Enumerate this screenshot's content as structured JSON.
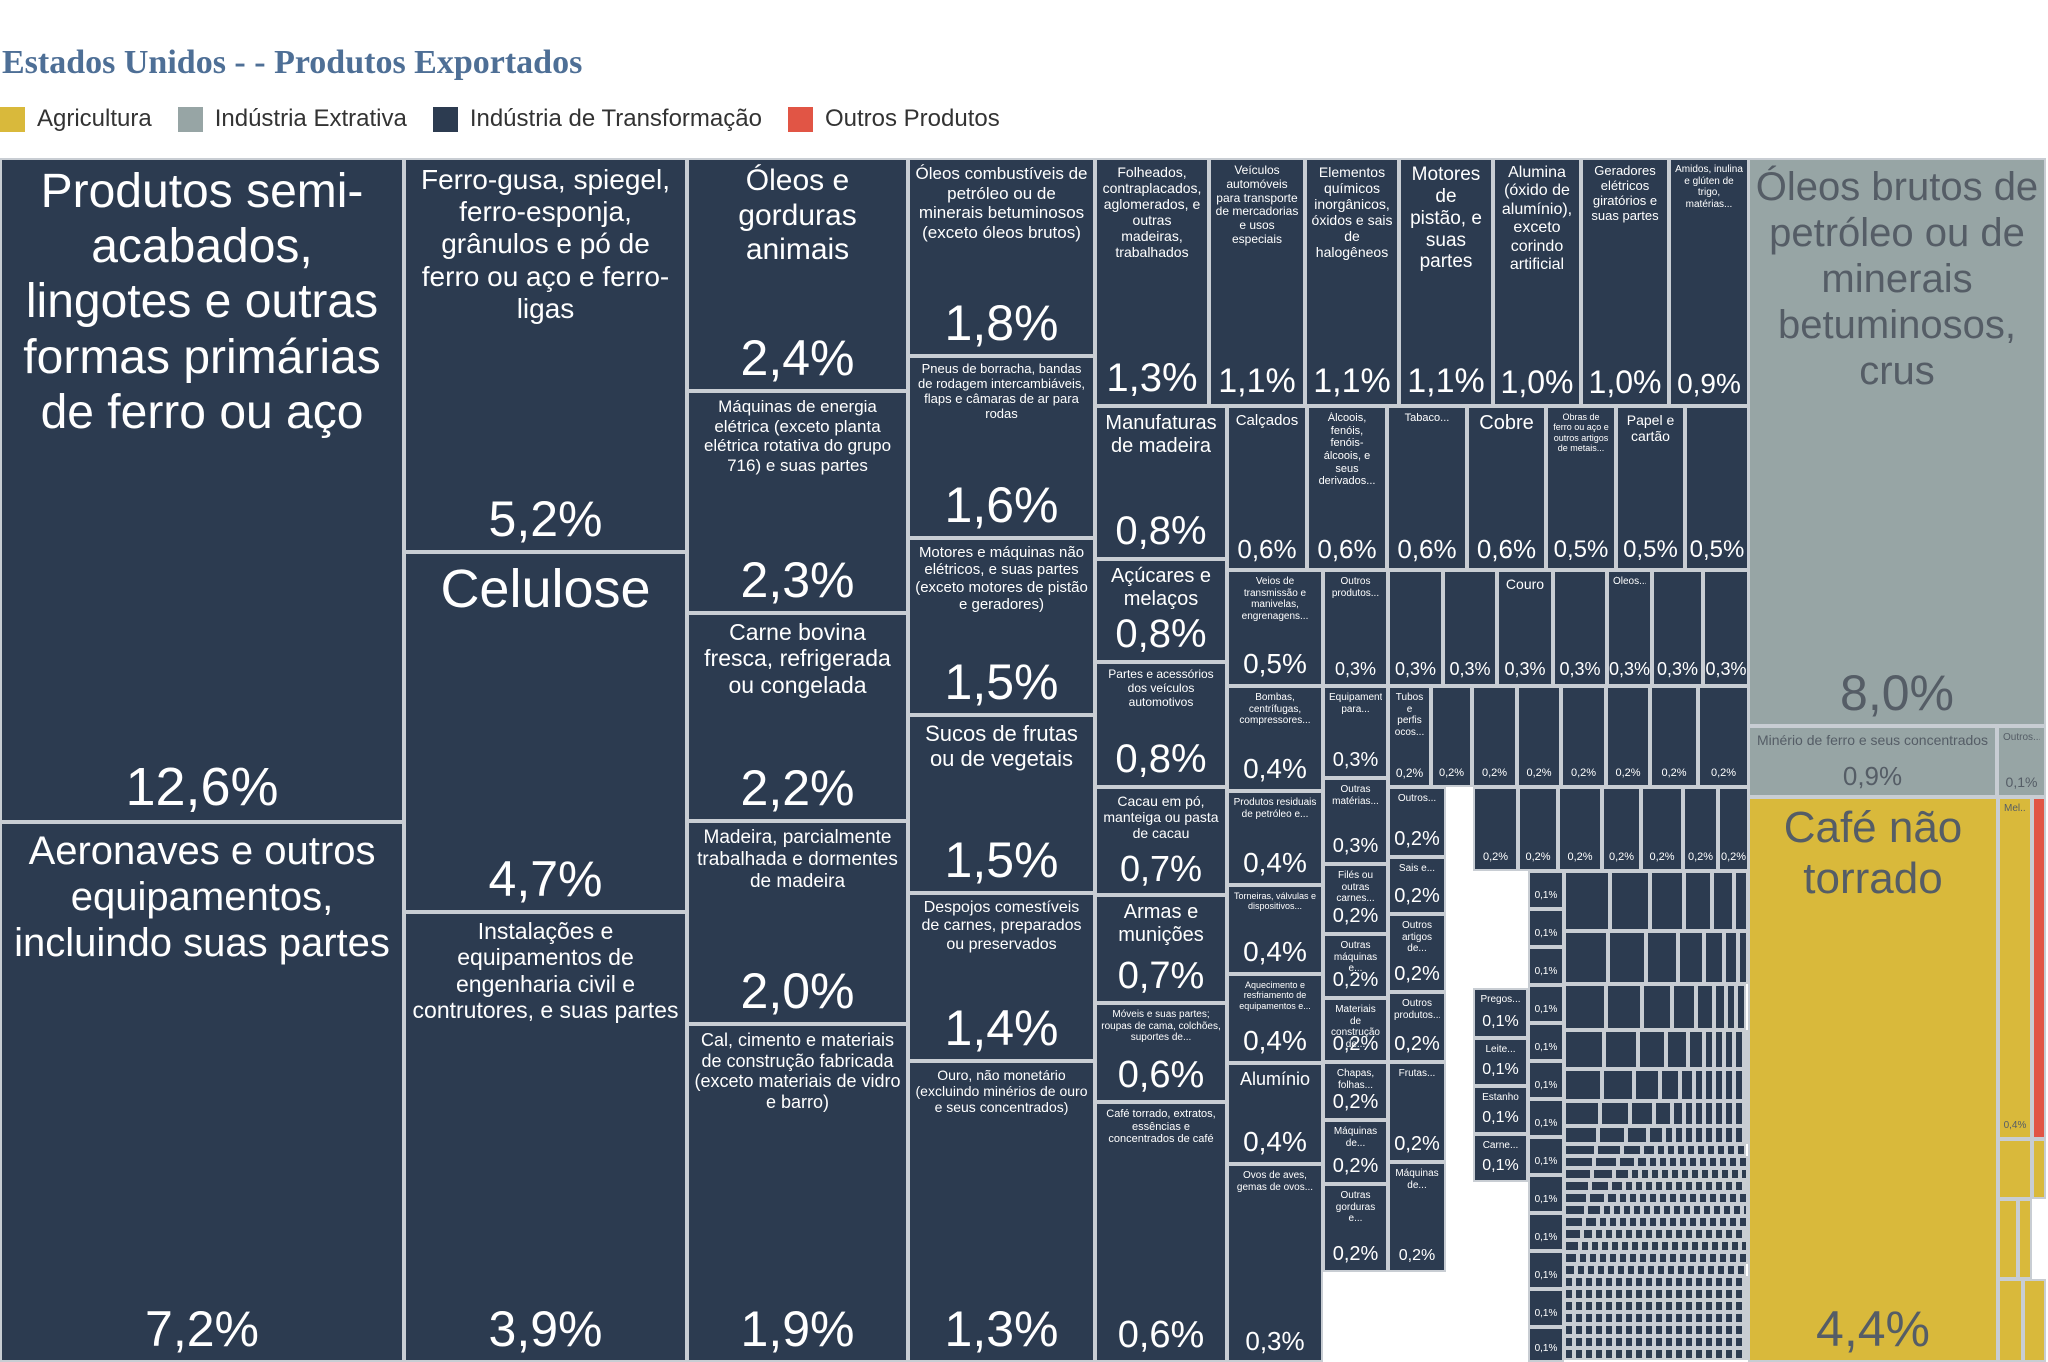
{
  "title": "Estados Unidos - - Produtos Exportados",
  "legend": [
    {
      "label": "Agricultura",
      "color": "#d9b93b",
      "icon": "legend-swatch-agricultura"
    },
    {
      "label": "Indústria Extrativa",
      "color": "#97a5a5",
      "icon": "legend-swatch-industria-extrativa"
    },
    {
      "label": "Indústria de Transformação",
      "color": "#2c3b50",
      "icon": "legend-swatch-industria-transformacao"
    },
    {
      "label": "Outros Produtos",
      "color": "#e15545",
      "icon": "legend-swatch-outros-produtos"
    }
  ],
  "chart_data": {
    "type": "treemap",
    "title": "Estados Unidos - - Produtos Exportados",
    "unit": "%",
    "items": [
      {
        "name": "Produtos semi-acabados, lingotes e outras formas primárias de ferro ou aço",
        "value": 12.6,
        "label": "12,6%",
        "category": "Indústria de Transformação"
      },
      {
        "name": "Aeronaves e outros equipamentos, incluindo suas partes",
        "value": 7.2,
        "label": "7,2%",
        "category": "Indústria de Transformação"
      },
      {
        "name": "Ferro-gusa, spiegel, ferro-esponja, grânulos e pó de ferro ou aço e ferro-ligas",
        "value": 5.2,
        "label": "5,2%",
        "category": "Indústria de Transformação"
      },
      {
        "name": "Celulose",
        "value": 4.7,
        "label": "4,7%",
        "category": "Indústria de Transformação"
      },
      {
        "name": "Instalações e equipamentos de engenharia civil e contrutores, e suas partes",
        "value": 3.9,
        "label": "3,9%",
        "category": "Indústria de Transformação"
      },
      {
        "name": "Óleos e gorduras animais",
        "value": 2.4,
        "label": "2,4%",
        "category": "Indústria de Transformação"
      },
      {
        "name": "Máquinas de energia elétrica (exceto planta elétrica rotativa do grupo 716) e suas partes",
        "value": 2.3,
        "label": "2,3%",
        "category": "Indústria de Transformação"
      },
      {
        "name": "Carne bovina fresca, refrigerada ou congelada",
        "value": 2.2,
        "label": "2,2%",
        "category": "Indústria de Transformação"
      },
      {
        "name": "Madeira, parcialmente trabalhada e dormentes de madeira",
        "value": 2.0,
        "label": "2,0%",
        "category": "Indústria de Transformação"
      },
      {
        "name": "Cal, cimento e materiais de construção fabricada (exceto materiais de vidro e barro)",
        "value": 1.9,
        "label": "1,9%",
        "category": "Indústria de Transformação"
      },
      {
        "name": "Óleos combustíveis de petróleo ou de minerais betuminosos (exceto óleos brutos)",
        "value": 1.8,
        "label": "1,8%",
        "category": "Indústria de Transformação"
      },
      {
        "name": "Pneus de borracha, bandas de rodagem intercambiáveis, flaps e câmaras de ar para rodas",
        "value": 1.6,
        "label": "1,6%",
        "category": "Indústria de Transformação"
      },
      {
        "name": "Motores e máquinas não elétricos, e suas partes (exceto motores de pistão e geradores)",
        "value": 1.5,
        "label": "1,5%",
        "category": "Indústria de Transformação"
      },
      {
        "name": "Sucos de frutas ou de vegetais",
        "value": 1.5,
        "label": "1,5%",
        "category": "Indústria de Transformação"
      },
      {
        "name": "Despojos comestíveis de carnes, preparados ou preservados",
        "value": 1.4,
        "label": "1,4%",
        "category": "Indústria de Transformação"
      },
      {
        "name": "Ouro, não monetário (excluindo minérios de ouro e seus concentrados)",
        "value": 1.3,
        "label": "1,3%",
        "category": "Indústria de Transformação"
      },
      {
        "name": "Folheados, contraplacados, aglomerados, e outras madeiras, trabalhados",
        "value": 1.3,
        "label": "1,3%",
        "category": "Indústria de Transformação"
      },
      {
        "name": "Veículos automóveis para transporte de mercadorias e usos especiais",
        "value": 1.1,
        "label": "1,1%",
        "category": "Indústria de Transformação"
      },
      {
        "name": "Elementos químicos inorgânicos, óxidos e sais de halogêneos",
        "value": 1.1,
        "label": "1,1%",
        "category": "Indústria de Transformação"
      },
      {
        "name": "Motores de pistão, e suas partes",
        "value": 1.1,
        "label": "1,1%",
        "category": "Indústria de Transformação"
      },
      {
        "name": "Alumina (óxido de alumínio), exceto corindo artificial",
        "value": 1.0,
        "label": "1,0%",
        "category": "Indústria de Transformação"
      },
      {
        "name": "Geradores elétricos giratórios e suas partes",
        "value": 1.0,
        "label": "1,0%",
        "category": "Indústria de Transformação"
      },
      {
        "name": "Amidos, inulina e glúten de trigo, matérias...",
        "value": 0.9,
        "label": "0,9%",
        "category": "Indústria de Transformação"
      },
      {
        "name": "Manufaturas de madeira",
        "value": 0.8,
        "label": "0,8%",
        "category": "Indústria de Transformação"
      },
      {
        "name": "Açúcares e melaços",
        "value": 0.8,
        "label": "0,8%",
        "category": "Indústria de Transformação"
      },
      {
        "name": "Partes e acessórios dos veículos automotivos",
        "value": 0.8,
        "label": "0,8%",
        "category": "Indústria de Transformação"
      },
      {
        "name": "Cacau em pó, manteiga ou pasta de cacau",
        "value": 0.7,
        "label": "0,7%",
        "category": "Indústria de Transformação"
      },
      {
        "name": "Armas e munições",
        "value": 0.7,
        "label": "0,7%",
        "category": "Indústria de Transformação"
      },
      {
        "name": "Móveis e suas partes; roupas de cama, colchões, suportes de...",
        "value": 0.6,
        "label": "0,6%",
        "category": "Indústria de Transformação"
      },
      {
        "name": "Café torrado, extratos, essências e concentrados de café",
        "value": 0.6,
        "label": "0,6%",
        "category": "Indústria de Transformação"
      },
      {
        "name": "Calçados",
        "value": 0.6,
        "label": "0,6%",
        "category": "Indústria de Transformação"
      },
      {
        "name": "Álcoois, fenóis, fenóis-álcoois, e seus derivados...",
        "value": 0.6,
        "label": "0,6%",
        "category": "Indústria de Transformação"
      },
      {
        "name": "Tabaco...",
        "value": 0.6,
        "label": "0,6%",
        "category": "Indústria de Transformação"
      },
      {
        "name": "Cobre",
        "value": 0.6,
        "label": "0,6%",
        "category": "Indústria de Transformação"
      },
      {
        "name": "Obras de ferro ou aço e outros artigos de metais...",
        "value": 0.5,
        "label": "0,5%",
        "category": "Indústria de Transformação"
      },
      {
        "name": "Papel e cartão",
        "value": 0.5,
        "label": "0,5%",
        "category": "Indústria de Transformação"
      },
      {
        "name": "",
        "value": 0.5,
        "label": "0,5%",
        "category": "Indústria de Transformação"
      },
      {
        "name": "Veios de transmissão e manivelas, engrenagens...",
        "value": 0.5,
        "label": "0,5%",
        "category": "Indústria de Transformação"
      },
      {
        "name": "Bombas, centrífugas, compressores...",
        "value": 0.4,
        "label": "0,4%",
        "category": "Indústria de Transformação"
      },
      {
        "name": "Produtos residuais de petróleo e...",
        "value": 0.4,
        "label": "0,4%",
        "category": "Indústria de Transformação"
      },
      {
        "name": "Torneiras, válvulas e dispositivos...",
        "value": 0.4,
        "label": "0,4%",
        "category": "Indústria de Transformação"
      },
      {
        "name": "Aquecimento e resfriamento de equipamentos e...",
        "value": 0.4,
        "label": "0,4%",
        "category": "Indústria de Transformação"
      },
      {
        "name": "Alumínio",
        "value": 0.4,
        "label": "0,4%",
        "category": "Indústria de Transformação"
      },
      {
        "name": "Ovos de aves, gemas de ovos...",
        "value": 0.3,
        "label": "0,3%",
        "category": "Indústria de Transformação"
      },
      {
        "name": "Outros produtos...",
        "value": 0.3,
        "label": "0,3%",
        "category": "Indústria de Transformação"
      },
      {
        "name": "Couro",
        "value": 0.3,
        "label": "0,3%",
        "category": "Indústria de Transformação"
      },
      {
        "name": "Óleos...",
        "value": 0.3,
        "label": "0,3%",
        "category": "Indústria de Transformação"
      },
      {
        "name": "Equipamento para...",
        "value": 0.3,
        "label": "0,3%",
        "category": "Indústria de Transformação"
      },
      {
        "name": "Outras matérias...",
        "value": 0.3,
        "label": "0,3%",
        "category": "Indústria de Transformação"
      },
      {
        "name": "Tubos e perfis ocos...",
        "value": 0.2,
        "label": "0,2%",
        "category": "Indústria de Transformação"
      },
      {
        "name": "Filés ou outras carnes...",
        "value": 0.2,
        "label": "0,2%",
        "category": "Indústria de Transformação"
      },
      {
        "name": "Outras máquinas e...",
        "value": 0.2,
        "label": "0,2%",
        "category": "Indústria de Transformação"
      },
      {
        "name": "Materiais de construção de...",
        "value": 0.2,
        "label": "0,2%",
        "category": "Indústria de Transformação"
      },
      {
        "name": "Chapas, folhas...",
        "value": 0.2,
        "label": "0,2%",
        "category": "Indústria de Transformação"
      },
      {
        "name": "Máquinas de...",
        "value": 0.2,
        "label": "0,2%",
        "category": "Indústria de Transformação"
      },
      {
        "name": "Outras gorduras e...",
        "value": 0.2,
        "label": "0,2%",
        "category": "Indústria de Transformação"
      },
      {
        "name": "Outros...",
        "value": 0.2,
        "label": "0,2%",
        "category": "Indústria de Transformação"
      },
      {
        "name": "Sais e...",
        "value": 0.2,
        "label": "0,2%",
        "category": "Indústria de Transformação"
      },
      {
        "name": "Outros artigos de...",
        "value": 0.2,
        "label": "0,2%",
        "category": "Indústria de Transformação"
      },
      {
        "name": "Outros produtos...",
        "value": 0.2,
        "label": "0,2%",
        "category": "Indústria de Transformação"
      },
      {
        "name": "Frutas...",
        "value": 0.2,
        "label": "0,2%",
        "category": "Indústria de Transformação"
      },
      {
        "name": "Máquinas de...",
        "value": 0.2,
        "label": "0,2%",
        "category": "Indústria de Transformação"
      },
      {
        "name": "Pregos...",
        "value": 0.1,
        "label": "0,1%",
        "category": "Indústria de Transformação"
      },
      {
        "name": "Leite...",
        "value": 0.1,
        "label": "0,1%",
        "category": "Indústria de Transformação"
      },
      {
        "name": "Estanho",
        "value": 0.1,
        "label": "0,1%",
        "category": "Indústria de Transformação"
      },
      {
        "name": "Carne...",
        "value": 0.1,
        "label": "0,1%",
        "category": "Indústria de Transformação"
      },
      {
        "name": "Óleos brutos de petróleo ou de minerais betuminosos, crus",
        "value": 8.0,
        "label": "8,0%",
        "category": "Indústria Extrativa"
      },
      {
        "name": "Minério de ferro e seus concentrados",
        "value": 0.9,
        "label": "0,9%",
        "category": "Indústria Extrativa"
      },
      {
        "name": "Outros...",
        "value": 0.1,
        "label": "0,1%",
        "category": "Indústria Extrativa"
      },
      {
        "name": "Café não torrado",
        "value": 4.4,
        "label": "4,4%",
        "category": "Agricultura"
      },
      {
        "name": "Mel...",
        "value": 0.4,
        "label": "0,4%",
        "category": "Agricultura"
      }
    ],
    "small_labels": [
      "0,3%",
      "0,2%",
      "0,1%"
    ]
  }
}
